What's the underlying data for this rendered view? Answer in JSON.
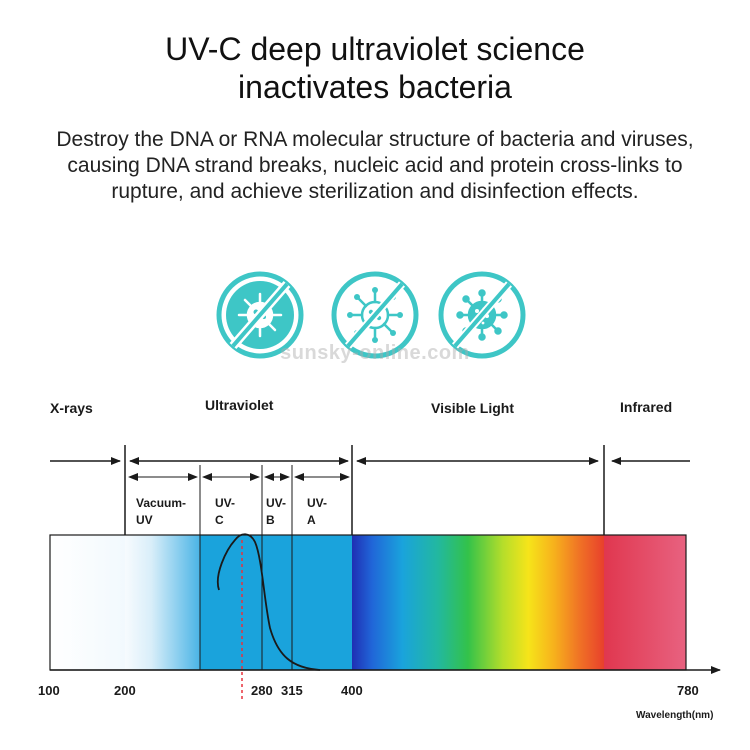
{
  "header": {
    "title_line1": "UV-C deep ultraviolet science",
    "title_line2": "inactivates bacteria",
    "description": "Destroy the DNA or RNA molecular structure of bacteria and viruses, causing DNA strand breaks, nucleic acid and protein cross-links to rupture, and achieve sterilization and disinfection effects."
  },
  "icons": [
    {
      "name": "bacteria-prohibited-icon"
    },
    {
      "name": "virus-prohibited-icon"
    },
    {
      "name": "germ-prohibited-icon"
    }
  ],
  "watermark": "sunsky-online.com",
  "spectrum": {
    "regions": {
      "xrays": "X-rays",
      "ultraviolet": "Ultraviolet",
      "visible": "Visible Light",
      "infrared": "Infrared"
    },
    "bands": {
      "vacuum_line1": "Vacuum-",
      "vacuum_line2": "UV",
      "uvc_line1": "UV-",
      "uvc_line2": "C",
      "uvb_line1": "UV-",
      "uvb_line2": "B",
      "uva_line1": "UV-",
      "uva_line2": "A"
    },
    "ticks": {
      "t100": "100",
      "t200": "200",
      "t280": "280",
      "t315": "315",
      "t400": "400",
      "t780": "780"
    },
    "axis_label": "Wavelength(nm)",
    "colors": {
      "icon_teal": "#3ec6c6",
      "uv_blue": "#1aa3dc",
      "infrared_red": "#e0405a",
      "marker_red": "#e8323c"
    }
  }
}
